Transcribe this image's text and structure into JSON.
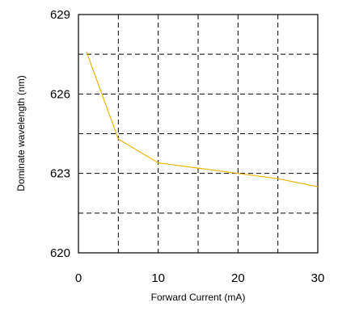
{
  "chart_data": {
    "type": "line",
    "xlabel": "Forward  Current (mA)",
    "ylabel": "Dominate wavelength (nm)",
    "xlim": [
      0,
      30
    ],
    "ylim": [
      620,
      629
    ],
    "x_ticks": [
      0,
      10,
      20,
      30
    ],
    "x_tick_labels": [
      "0",
      "10",
      "20",
      "30"
    ],
    "y_ticks": [
      620,
      623,
      626,
      629
    ],
    "y_tick_labels": [
      "620",
      "623",
      "626",
      "629"
    ],
    "grid": true,
    "x_grid": [
      0,
      5,
      10,
      15,
      20,
      25,
      30
    ],
    "y_grid": [
      620,
      621.5,
      623,
      624.5,
      626,
      627.5,
      629
    ],
    "series": [
      {
        "color": "#f0b400",
        "x": [
          1,
          5,
          10,
          15,
          20,
          25,
          30
        ],
        "y": [
          627.6,
          624.3,
          623.4,
          623.2,
          623.0,
          622.8,
          622.5
        ]
      }
    ]
  }
}
